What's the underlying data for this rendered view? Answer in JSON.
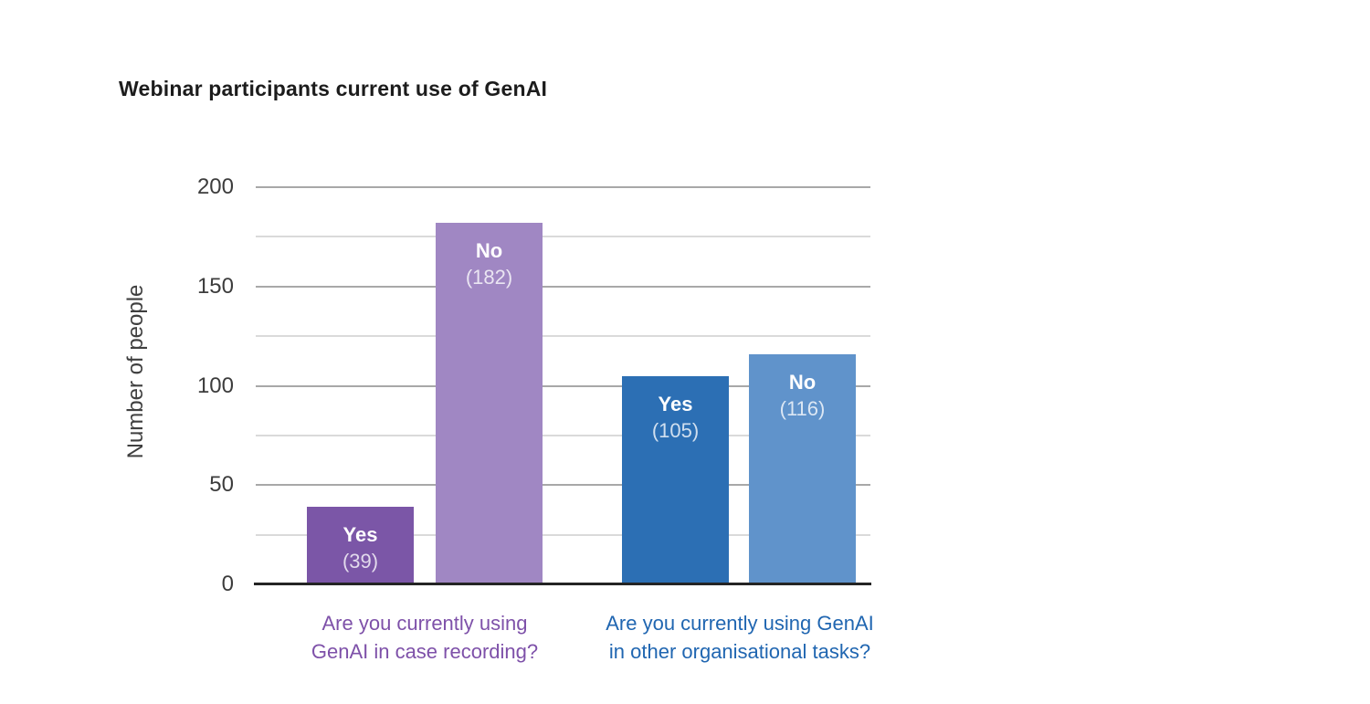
{
  "header": {
    "title": "Webinar participants current use of GenAI"
  },
  "chart_data": {
    "type": "bar",
    "title": "Webinar participants current use of GenAI",
    "xlabel": "",
    "ylabel": "Number of people",
    "ylim": [
      0,
      200
    ],
    "yticks": [
      0,
      50,
      100,
      150,
      200
    ],
    "minor_gridline_step": 25,
    "grid": true,
    "groups": [
      {
        "question": "Are you currently using GenAI in case recording?",
        "question_lines": [
          "Are you currently using",
          "GenAI in case recording?"
        ],
        "question_color": "#7e51a9",
        "bars": [
          {
            "label": "Yes",
            "value": 39,
            "color": "#7b56a7"
          },
          {
            "label": "No",
            "value": 182,
            "color": "#a087c3"
          }
        ]
      },
      {
        "question": "Are you currently using GenAI in other organisational tasks?",
        "question_lines": [
          "Are you currently using GenAI",
          "in other organisational tasks?"
        ],
        "question_color": "#2066b1",
        "bars": [
          {
            "label": "Yes",
            "value": 105,
            "color": "#2c6fb4"
          },
          {
            "label": "No",
            "value": 116,
            "color": "#6093cb"
          }
        ]
      }
    ]
  },
  "colors": {
    "background": "#ffffff",
    "title_text": "#1c1c1c",
    "axis_text": "#3c3c3c",
    "major_gridline": "#a8a8a8",
    "minor_gridline": "#dadada",
    "axis_line": "#242424",
    "bar_label_text": "#ffffff"
  }
}
